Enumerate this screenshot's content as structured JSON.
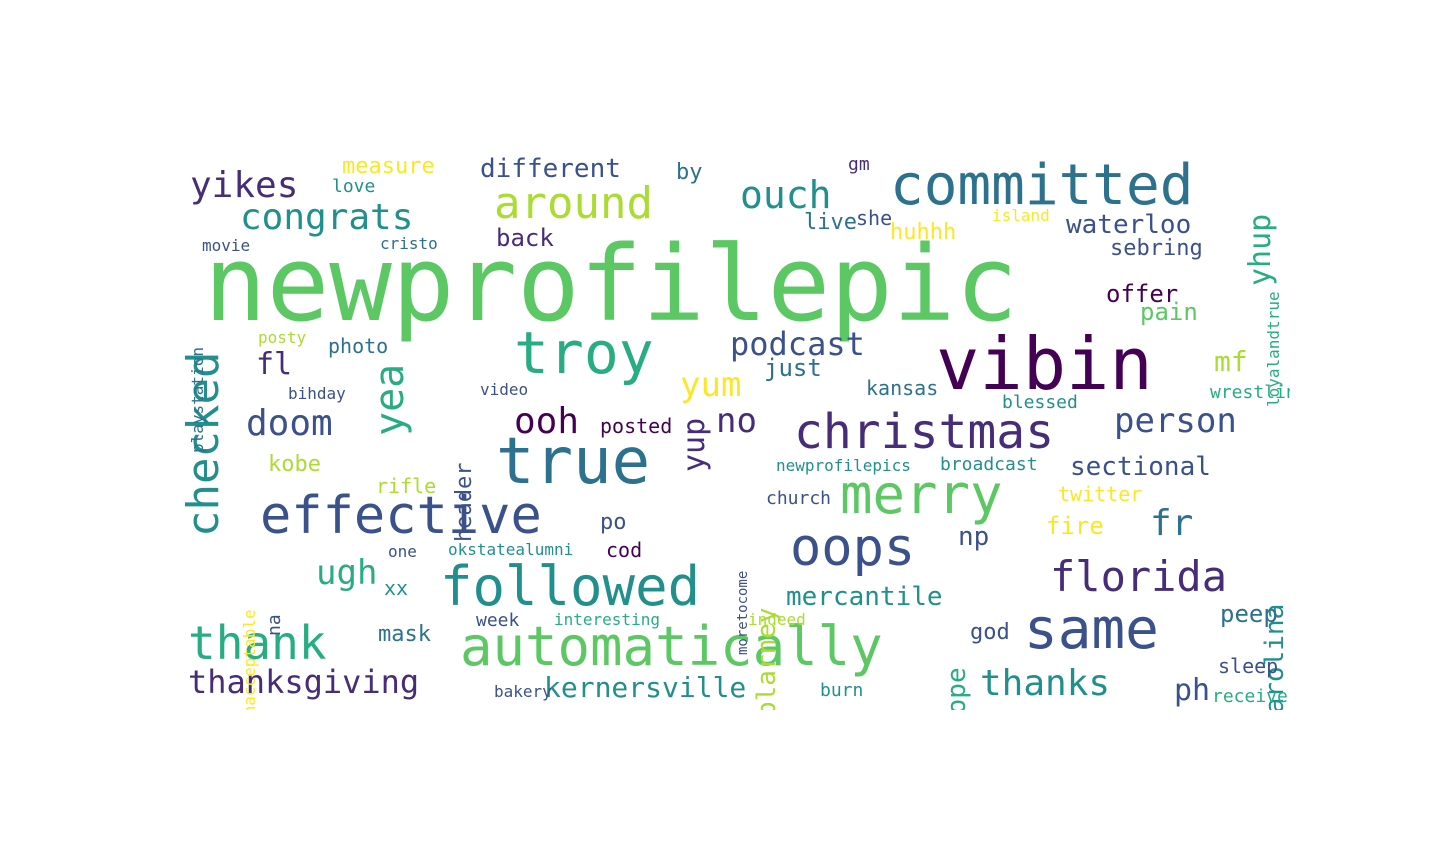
{
  "palette": [
    "#440154",
    "#472c7a",
    "#3b518b",
    "#2c718e",
    "#21908d",
    "#27ad81",
    "#5cc863",
    "#aadc32",
    "#fde725"
  ],
  "words": [
    {
      "text": "newprofilepic",
      "color": "#5cc863"
    },
    {
      "text": "committed",
      "color": "#2c718e"
    },
    {
      "text": "vibin",
      "color": "#440154"
    },
    {
      "text": "troy",
      "color": "#27ad81"
    },
    {
      "text": "true",
      "color": "#2c718e"
    },
    {
      "text": "christmas",
      "color": "#472c7a"
    },
    {
      "text": "merry",
      "color": "#5cc863"
    },
    {
      "text": "effective",
      "color": "#3b518b"
    },
    {
      "text": "followed",
      "color": "#21908d"
    },
    {
      "text": "automatically",
      "color": "#5cc863"
    },
    {
      "text": "same",
      "color": "#3b518b"
    },
    {
      "text": "florida",
      "color": "#472c7a"
    },
    {
      "text": "oops",
      "color": "#3b518b"
    },
    {
      "text": "checked",
      "color": "#21908d"
    },
    {
      "text": "thank",
      "color": "#27ad81"
    },
    {
      "text": "around",
      "color": "#aadc32"
    },
    {
      "text": "congrats",
      "color": "#21908d"
    },
    {
      "text": "yikes",
      "color": "#472c7a"
    },
    {
      "text": "ouch",
      "color": "#21908d"
    },
    {
      "text": "person",
      "color": "#3b518b"
    },
    {
      "text": "yea",
      "color": "#27ad81"
    },
    {
      "text": "doom",
      "color": "#3b518b"
    },
    {
      "text": "ooh",
      "color": "#440154"
    },
    {
      "text": "podcast",
      "color": "#3b518b"
    },
    {
      "text": "yum",
      "color": "#fde725"
    },
    {
      "text": "no",
      "color": "#472c7a"
    },
    {
      "text": "ugh",
      "color": "#27ad81"
    },
    {
      "text": "thanksgiving",
      "color": "#472c7a"
    },
    {
      "text": "kernersville",
      "color": "#21908d"
    },
    {
      "text": "thanks",
      "color": "#21908d"
    },
    {
      "text": "fr",
      "color": "#2c718e"
    },
    {
      "text": "yup",
      "color": "#472c7a"
    },
    {
      "text": "yhup",
      "color": "#27ad81"
    },
    {
      "text": "waterloo",
      "color": "#3b518b"
    },
    {
      "text": "sectional",
      "color": "#3b518b"
    },
    {
      "text": "mercantile",
      "color": "#21908d"
    },
    {
      "text": "different",
      "color": "#3b518b"
    },
    {
      "text": "measure",
      "color": "#fde725"
    },
    {
      "text": "by",
      "color": "#2c718e"
    },
    {
      "text": "gm",
      "color": "#472c7a"
    },
    {
      "text": "she",
      "color": "#3b518b"
    },
    {
      "text": "live",
      "color": "#2c718e"
    },
    {
      "text": "huhhh",
      "color": "#fde725"
    },
    {
      "text": "island",
      "color": "#fde725"
    },
    {
      "text": "sebring",
      "color": "#3b518b"
    },
    {
      "text": "offer",
      "color": "#440154"
    },
    {
      "text": "pain",
      "color": "#5cc863"
    },
    {
      "text": "mf",
      "color": "#aadc32"
    },
    {
      "text": "just",
      "color": "#2c718e"
    },
    {
      "text": "kansas",
      "color": "#2c718e"
    },
    {
      "text": "blessed",
      "color": "#21908d"
    },
    {
      "text": "wrestling",
      "color": "#27ad81"
    },
    {
      "text": "back",
      "color": "#472c7a"
    },
    {
      "text": "cristo",
      "color": "#2c718e"
    },
    {
      "text": "love",
      "color": "#21908d"
    },
    {
      "text": "movie",
      "color": "#3b518b"
    },
    {
      "text": "playstation",
      "color": "#2c718e"
    },
    {
      "text": "photo",
      "color": "#2c718e"
    },
    {
      "text": "fl",
      "color": "#472c7a"
    },
    {
      "text": "bihday",
      "color": "#3b518b"
    },
    {
      "text": "posty",
      "color": "#aadc32"
    },
    {
      "text": "header",
      "color": "#3b518b"
    },
    {
      "text": "posted",
      "color": "#440154"
    },
    {
      "text": "video",
      "color": "#3b518b"
    },
    {
      "text": "kobe",
      "color": "#aadc32"
    },
    {
      "text": "rifle",
      "color": "#aadc32"
    },
    {
      "text": "po",
      "color": "#3b518b"
    },
    {
      "text": "cod",
      "color": "#440154"
    },
    {
      "text": "xx",
      "color": "#21908d"
    },
    {
      "text": "one",
      "color": "#3b518b"
    },
    {
      "text": "okstatealumni",
      "color": "#21908d"
    },
    {
      "text": "unacceptable",
      "color": "#fde725"
    },
    {
      "text": "na",
      "color": "#3b518b"
    },
    {
      "text": "mask",
      "color": "#2c718e"
    },
    {
      "text": "week",
      "color": "#3b518b"
    },
    {
      "text": "interesting",
      "color": "#27ad81"
    },
    {
      "text": "indeed",
      "color": "#aadc32"
    },
    {
      "text": "bakery",
      "color": "#3b518b"
    },
    {
      "text": "burn",
      "color": "#21908d"
    },
    {
      "text": "god",
      "color": "#3b518b"
    },
    {
      "text": "nope",
      "color": "#27ad81"
    },
    {
      "text": "blarney",
      "color": "#aadc32"
    },
    {
      "text": "church",
      "color": "#3b518b"
    },
    {
      "text": "np",
      "color": "#3b518b"
    },
    {
      "text": "newprofilepics",
      "color": "#21908d"
    },
    {
      "text": "broadcast",
      "color": "#21908d"
    },
    {
      "text": "twitter",
      "color": "#fde725"
    },
    {
      "text": "fire",
      "color": "#fde725"
    },
    {
      "text": "carolina",
      "color": "#21908d"
    },
    {
      "text": "peep",
      "color": "#2c718e"
    },
    {
      "text": "sleep",
      "color": "#3b518b"
    },
    {
      "text": "receive",
      "color": "#27ad81"
    },
    {
      "text": "ph",
      "color": "#3b518b"
    },
    {
      "text": "loyalandtrue",
      "color": "#27ad81"
    },
    {
      "text": "moretocome",
      "color": "#3b518b"
    }
  ]
}
